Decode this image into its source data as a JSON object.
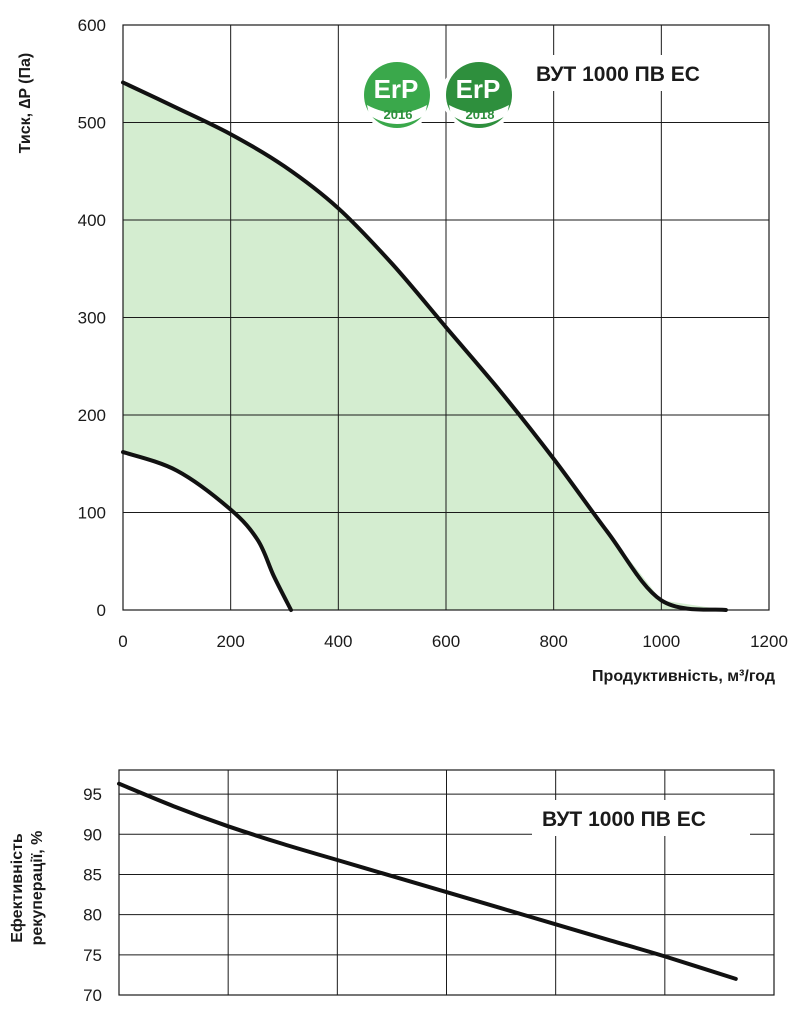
{
  "chart_data": [
    {
      "type": "area",
      "xlabel": "Продуктивність, м³/год",
      "ylabel": "Тиск, ∆P (Па)",
      "xlim": [
        0,
        1200
      ],
      "ylim": [
        0,
        600
      ],
      "x_ticks": [
        "0",
        "200",
        "400",
        "600",
        "800",
        "1000",
        "1200"
      ],
      "y_ticks": [
        "0",
        "100",
        "200",
        "300",
        "400",
        "500",
        "600"
      ],
      "grid": true,
      "fill_color": "#d4edd0",
      "series": [
        {
          "points": [
            [
              0,
              541
            ],
            [
              100,
              515
            ],
            [
              200,
              488
            ],
            [
              300,
              455
            ],
            [
              400,
              412
            ],
            [
              500,
              355
            ],
            [
              600,
              290
            ],
            [
              700,
              225
            ],
            [
              800,
              155
            ],
            [
              900,
              80
            ],
            [
              1000,
              10
            ],
            [
              1120,
              0
            ]
          ],
          "role": "upper"
        },
        {
          "points": [
            [
              0,
              162
            ],
            [
              100,
              143
            ],
            [
              200,
              103
            ],
            [
              250,
              72
            ],
            [
              280,
              35
            ],
            [
              312,
              0
            ]
          ],
          "role": "lower"
        }
      ],
      "annotations": {
        "model": "ВУТ 1000 ПВ ЕС",
        "badges": [
          {
            "top": "ErP",
            "year": "2016",
            "color": "#3aa84b"
          },
          {
            "top": "ErP",
            "year": "2018",
            "color": "#2e8f3d"
          }
        ]
      }
    },
    {
      "type": "line",
      "ylabel_lines": [
        "Ефективність",
        "рекуперації, %"
      ],
      "xlim": [
        0,
        1200
      ],
      "ylim": [
        70,
        98
      ],
      "y_ticks": [
        "70",
        "75",
        "80",
        "85",
        "90",
        "95"
      ],
      "grid": true,
      "series": [
        {
          "points": [
            [
              0,
              96.3
            ],
            [
              100,
              93.5
            ],
            [
              200,
              91
            ],
            [
              300,
              88.8
            ],
            [
              400,
              86.8
            ],
            [
              500,
              84.8
            ],
            [
              600,
              82.8
            ],
            [
              700,
              80.8
            ],
            [
              800,
              78.8
            ],
            [
              900,
              76.8
            ],
            [
              1000,
              74.8
            ],
            [
              1130,
              72
            ]
          ]
        }
      ],
      "annotations": {
        "model": "ВУТ 1000 ПВ ЕС"
      }
    }
  ]
}
